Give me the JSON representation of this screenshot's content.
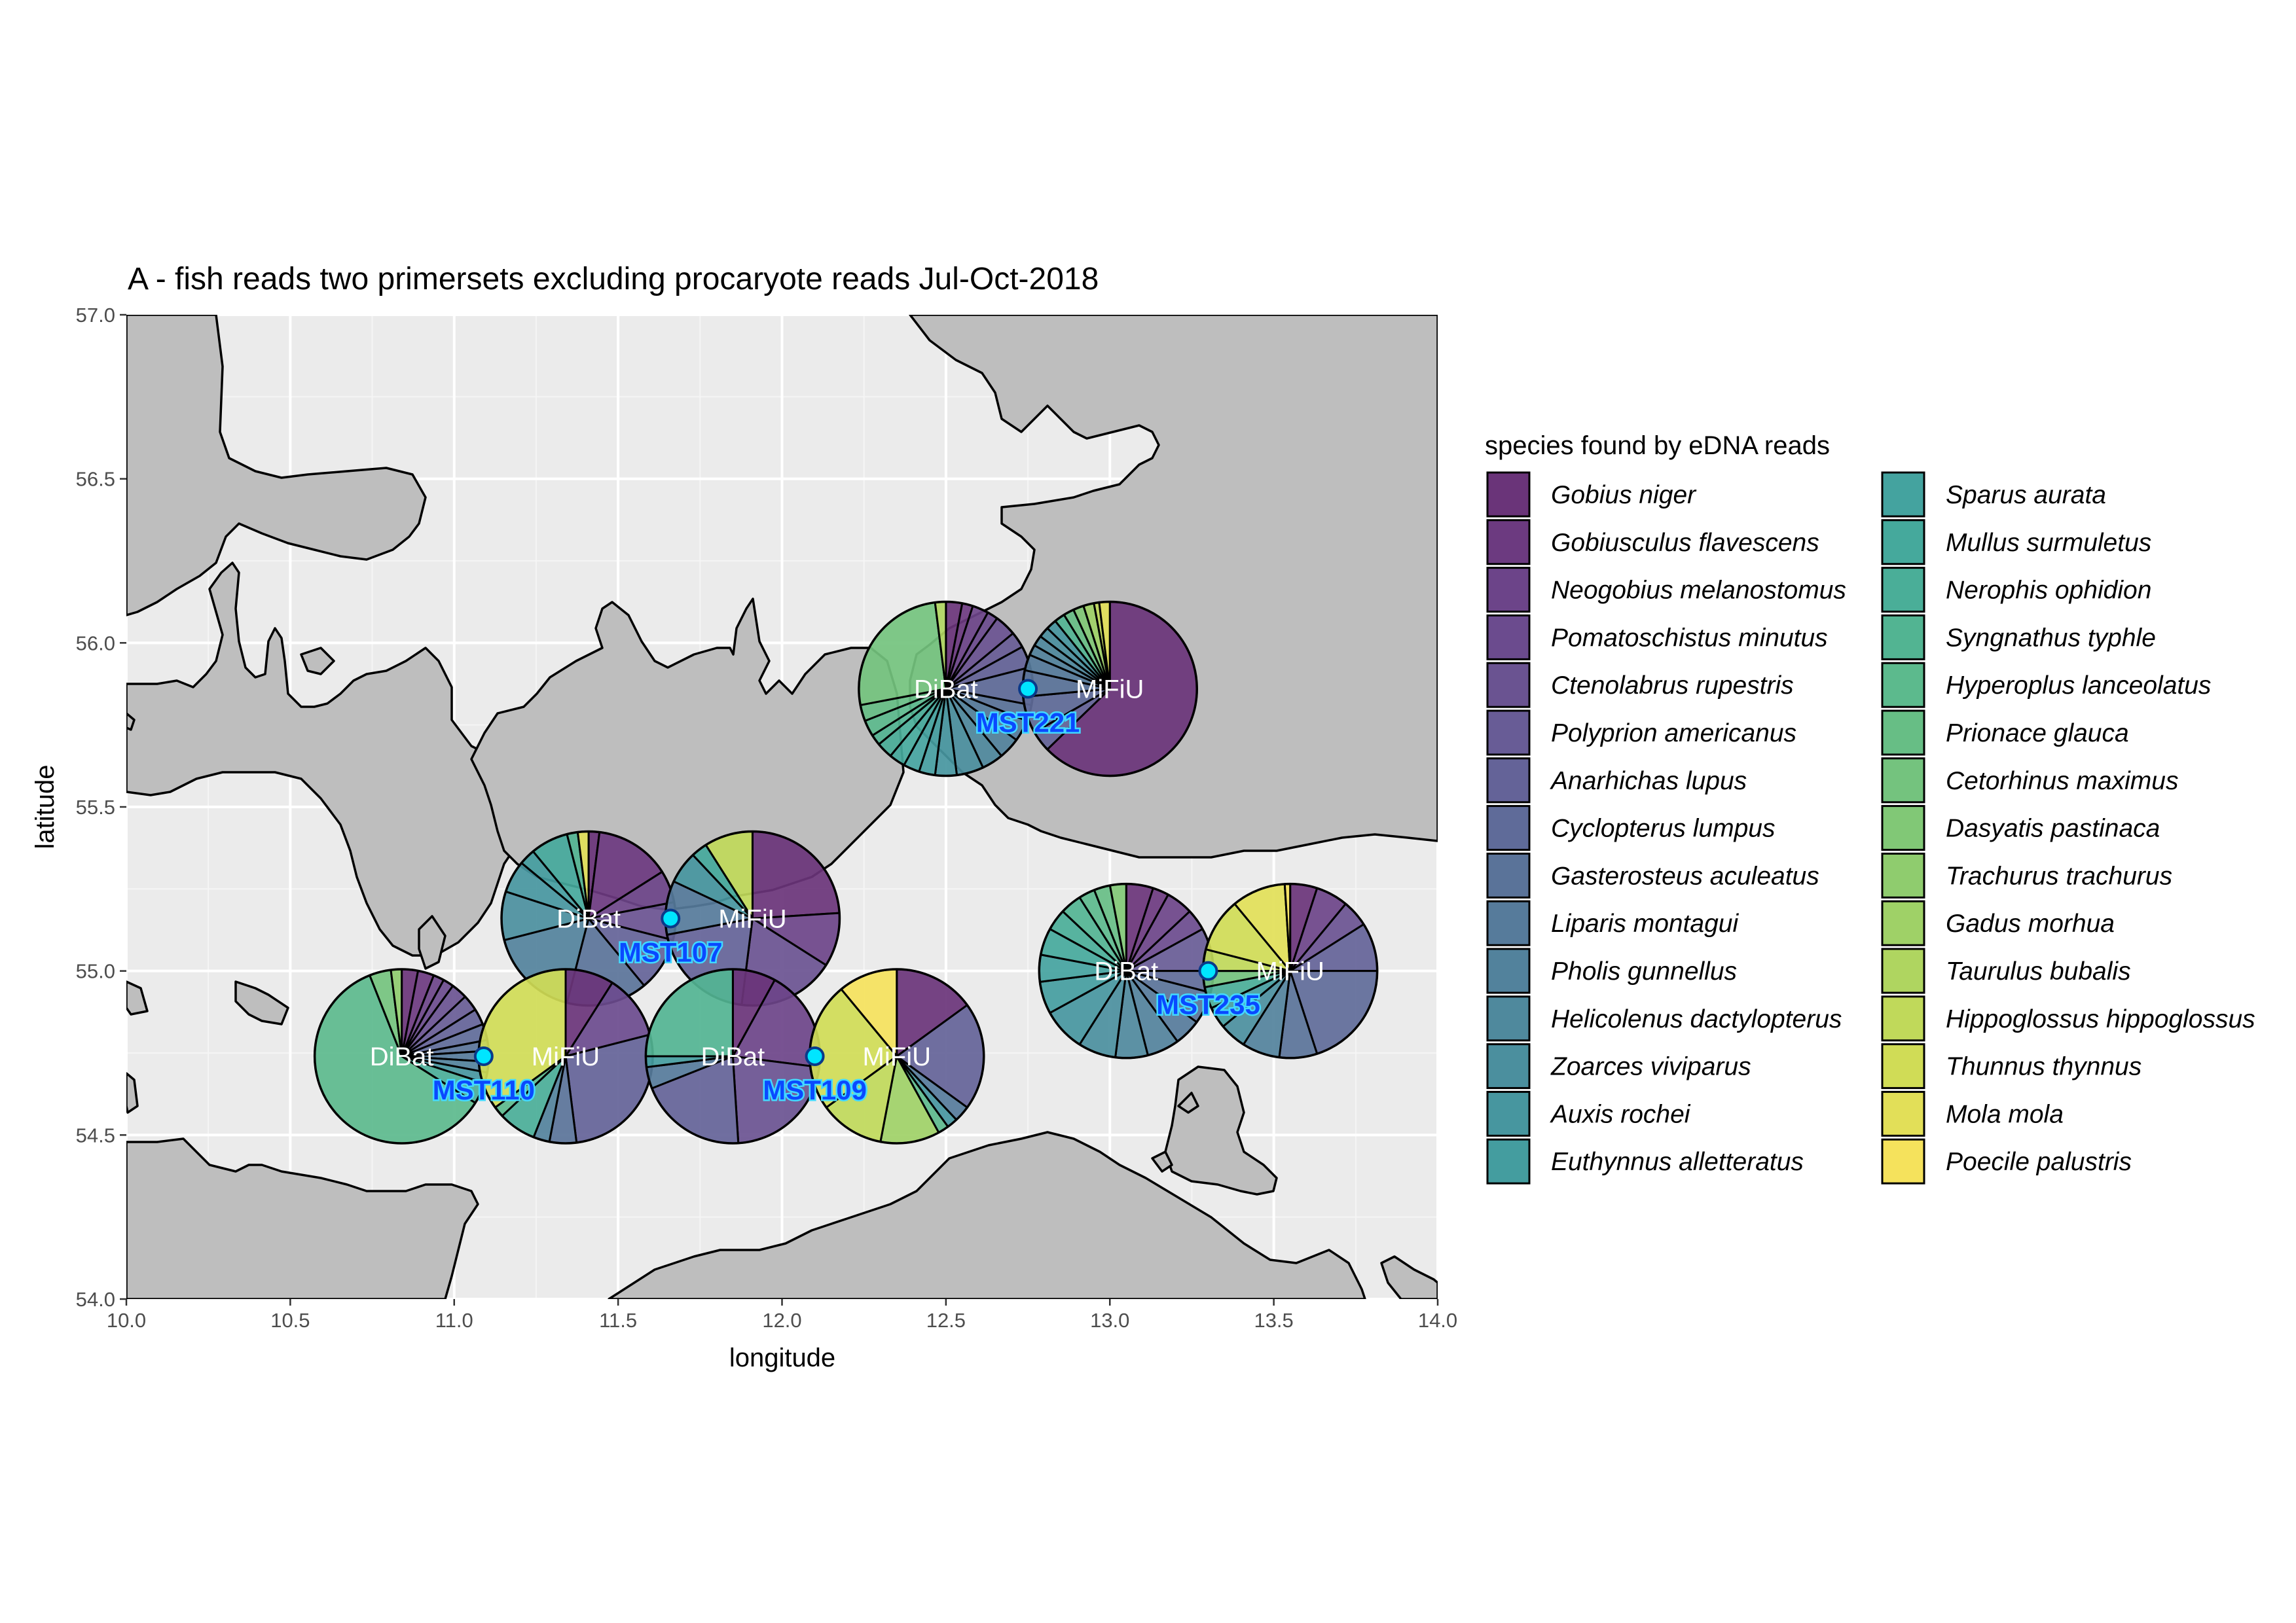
{
  "chart_data": {
    "type": "map-pie",
    "title": "A - fish reads two primersets excluding procaryote reads Jul-Oct-2018",
    "xlabel": "longitude",
    "ylabel": "latitude",
    "xlim": [
      10.0,
      14.0
    ],
    "ylim": [
      54.0,
      57.0
    ],
    "xticks": [
      "10.0",
      "10.5",
      "11.0",
      "11.5",
      "12.0",
      "12.5",
      "13.0",
      "13.5",
      "14.0"
    ],
    "yticks": [
      "54.0",
      "54.5",
      "55.0",
      "55.5",
      "56.0",
      "56.5",
      "57.0"
    ],
    "grid": true,
    "legend_placement": "right",
    "legend_title": "species found by eDNA reads",
    "species": [
      {
        "name": "Gobius niger",
        "color": "#6a3479"
      },
      {
        "name": "Gobiusculus flavescens",
        "color": "#6c3a80"
      },
      {
        "name": "Neogobius melanostomus",
        "color": "#6c4489"
      },
      {
        "name": "Pomatoschistus minutus",
        "color": "#6b4b8e"
      },
      {
        "name": "Ctenolabrus rupestris",
        "color": "#6a5391"
      },
      {
        "name": "Polyprion americanus",
        "color": "#685c96"
      },
      {
        "name": "Anarhichas lupus",
        "color": "#646398"
      },
      {
        "name": "Cyclopterus lumpus",
        "color": "#5f6b99"
      },
      {
        "name": "Gasterosteus aculeatus",
        "color": "#5a7399"
      },
      {
        "name": "Liparis montagui",
        "color": "#567b9b"
      },
      {
        "name": "Pholis gunnellus",
        "color": "#52829c"
      },
      {
        "name": "Helicolenus dactylopterus",
        "color": "#4f899d"
      },
      {
        "name": "Zoarces viviparus",
        "color": "#4b8f9e"
      },
      {
        "name": "Auxis rochei",
        "color": "#47969f"
      },
      {
        "name": "Euthynnus alletteratus",
        "color": "#449d9f"
      },
      {
        "name": "Sparus aurata",
        "color": "#44a39f"
      },
      {
        "name": "Mullus surmuletus",
        "color": "#45a99c"
      },
      {
        "name": "Nerophis ophidion",
        "color": "#4aae98"
      },
      {
        "name": "Syngnathus typhle",
        "color": "#52b492"
      },
      {
        "name": "Hyperoplus lanceolatus",
        "color": "#5cba8d"
      },
      {
        "name": "Prionace glauca",
        "color": "#67be85"
      },
      {
        "name": "Cetorhinus maximus",
        "color": "#74c37e"
      },
      {
        "name": "Dasyatis pastinaca",
        "color": "#81c876"
      },
      {
        "name": "Trachurus trachurus",
        "color": "#8fcc6e"
      },
      {
        "name": "Gadus morhua",
        "color": "#9fd167"
      },
      {
        "name": "Taurulus bubalis",
        "color": "#afd560"
      },
      {
        "name": "Hippoglossus hippoglossus",
        "color": "#c0d95a"
      },
      {
        "name": "Thunnus thynnus",
        "color": "#d0dc56"
      },
      {
        "name": "Mola mola",
        "color": "#e2df58"
      },
      {
        "name": "Poecile palustris",
        "color": "#f5e25c"
      }
    ],
    "stations": [
      {
        "name": "MST221",
        "lon": 12.75,
        "lat": 55.86,
        "primers": [
          "DiBat",
          "MiFiU"
        ]
      },
      {
        "name": "MST107",
        "lon": 11.66,
        "lat": 55.16,
        "primers": [
          "DiBat",
          "MiFiU"
        ]
      },
      {
        "name": "MST235",
        "lon": 13.3,
        "lat": 55.0,
        "primers": [
          "DiBat",
          "MiFiU"
        ]
      },
      {
        "name": "MST110",
        "lon": 11.09,
        "lat": 54.74,
        "primers": [
          "DiBat",
          "MiFiU"
        ]
      },
      {
        "name": "MST109",
        "lon": 12.1,
        "lat": 54.74,
        "primers": [
          "DiBat",
          "MiFiU"
        ]
      }
    ],
    "pies": [
      {
        "station": "MST221",
        "primer": "DiBat",
        "lon": 12.5,
        "lat": 55.86,
        "slices": [
          [
            0,
            0.03
          ],
          [
            1,
            0.02
          ],
          [
            2,
            0.03
          ],
          [
            3,
            0.02
          ],
          [
            4,
            0.04
          ],
          [
            5,
            0.03
          ],
          [
            6,
            0.04
          ],
          [
            7,
            0.07
          ],
          [
            8,
            0.03
          ],
          [
            9,
            0.04
          ],
          [
            10,
            0.04
          ],
          [
            11,
            0.04
          ],
          [
            12,
            0.05
          ],
          [
            13,
            0.04
          ],
          [
            14,
            0.03
          ],
          [
            15,
            0.03
          ],
          [
            16,
            0.03
          ],
          [
            17,
            0.03
          ],
          [
            18,
            0.02
          ],
          [
            19,
            0.03
          ],
          [
            20,
            0.03
          ],
          [
            21,
            0.26
          ],
          [
            25,
            0.02
          ]
        ]
      },
      {
        "station": "MST221",
        "primer": "MiFiU",
        "lon": 13.0,
        "lat": 55.86,
        "slices": [
          [
            0,
            0.64
          ],
          [
            6,
            0.04
          ],
          [
            7,
            0.07
          ],
          [
            8,
            0.05
          ],
          [
            9,
            0.03
          ],
          [
            10,
            0.02
          ],
          [
            11,
            0.02
          ],
          [
            12,
            0.02
          ],
          [
            13,
            0.02
          ],
          [
            18,
            0.02
          ],
          [
            20,
            0.02
          ],
          [
            22,
            0.02
          ],
          [
            24,
            0.02
          ],
          [
            26,
            0.01
          ],
          [
            28,
            0.02
          ]
        ]
      },
      {
        "station": "MST107",
        "primer": "DiBat",
        "lon": 11.41,
        "lat": 55.16,
        "slices": [
          [
            0,
            0.02
          ],
          [
            1,
            0.14
          ],
          [
            2,
            0.06
          ],
          [
            4,
            0.07
          ],
          [
            6,
            0.1
          ],
          [
            8,
            0.15
          ],
          [
            10,
            0.17
          ],
          [
            12,
            0.09
          ],
          [
            13,
            0.06
          ],
          [
            14,
            0.03
          ],
          [
            16,
            0.07
          ],
          [
            18,
            0.02
          ],
          [
            28,
            0.02
          ]
        ]
      },
      {
        "station": "MST107",
        "primer": "MiFiU",
        "lon": 11.91,
        "lat": 55.16,
        "slices": [
          [
            0,
            0.24
          ],
          [
            2,
            0.1
          ],
          [
            4,
            0.18
          ],
          [
            6,
            0.2
          ],
          [
            9,
            0.1
          ],
          [
            13,
            0.06
          ],
          [
            16,
            0.03
          ],
          [
            26,
            0.09
          ]
        ]
      },
      {
        "station": "MST235",
        "primer": "DiBat",
        "lon": 13.05,
        "lat": 55.0,
        "slices": [
          [
            0,
            0.05
          ],
          [
            1,
            0.03
          ],
          [
            2,
            0.05
          ],
          [
            3,
            0.04
          ],
          [
            5,
            0.08
          ],
          [
            7,
            0.04
          ],
          [
            8,
            0.06
          ],
          [
            9,
            0.05
          ],
          [
            10,
            0.06
          ],
          [
            11,
            0.06
          ],
          [
            12,
            0.07
          ],
          [
            13,
            0.08
          ],
          [
            14,
            0.06
          ],
          [
            15,
            0.05
          ],
          [
            16,
            0.05
          ],
          [
            17,
            0.04
          ],
          [
            18,
            0.04
          ],
          [
            19,
            0.03
          ],
          [
            20,
            0.03
          ],
          [
            22,
            0.03
          ]
        ]
      },
      {
        "station": "MST235",
        "primer": "MiFiU",
        "lon": 13.55,
        "lat": 55.0,
        "slices": [
          [
            0,
            0.05
          ],
          [
            2,
            0.06
          ],
          [
            4,
            0.05
          ],
          [
            6,
            0.09
          ],
          [
            7,
            0.2
          ],
          [
            8,
            0.07
          ],
          [
            10,
            0.07
          ],
          [
            12,
            0.05
          ],
          [
            14,
            0.04
          ],
          [
            17,
            0.04
          ],
          [
            21,
            0.03
          ],
          [
            26,
            0.04
          ],
          [
            27,
            0.1
          ],
          [
            28,
            0.1
          ],
          [
            29,
            0.01
          ]
        ]
      },
      {
        "station": "MST110",
        "primer": "DiBat",
        "lon": 10.84,
        "lat": 54.74,
        "slices": [
          [
            0,
            0.03
          ],
          [
            1,
            0.03
          ],
          [
            2,
            0.02
          ],
          [
            3,
            0.02
          ],
          [
            4,
            0.03
          ],
          [
            5,
            0.03
          ],
          [
            6,
            0.03
          ],
          [
            7,
            0.03
          ],
          [
            8,
            0.02
          ],
          [
            9,
            0.02
          ],
          [
            10,
            0.02
          ],
          [
            13,
            0.02
          ],
          [
            17,
            0.04
          ],
          [
            19,
            0.6
          ],
          [
            21,
            0.04
          ],
          [
            23,
            0.02
          ]
        ]
      },
      {
        "station": "MST110",
        "primer": "MiFiU",
        "lon": 11.34,
        "lat": 54.74,
        "slices": [
          [
            0,
            0.09
          ],
          [
            3,
            0.12
          ],
          [
            6,
            0.27
          ],
          [
            8,
            0.05
          ],
          [
            10,
            0.03
          ],
          [
            17,
            0.07
          ],
          [
            19,
            0.02
          ],
          [
            27,
            0.35
          ]
        ]
      },
      {
        "station": "MST109",
        "primer": "DiBat",
        "lon": 11.85,
        "lat": 54.74,
        "slices": [
          [
            0,
            0.08
          ],
          [
            2,
            0.19
          ],
          [
            4,
            0.22
          ],
          [
            6,
            0.2
          ],
          [
            9,
            0.04
          ],
          [
            14,
            0.02
          ],
          [
            18,
            0.25
          ]
        ]
      },
      {
        "station": "MST109",
        "primer": "MiFiU",
        "lon": 12.35,
        "lat": 54.74,
        "slices": [
          [
            0,
            0.15
          ],
          [
            6,
            0.2
          ],
          [
            9,
            0.03
          ],
          [
            13,
            0.02
          ],
          [
            19,
            0.02
          ],
          [
            24,
            0.11
          ],
          [
            26,
            0.12
          ],
          [
            27,
            0.24
          ],
          [
            29,
            0.11
          ]
        ]
      }
    ]
  }
}
